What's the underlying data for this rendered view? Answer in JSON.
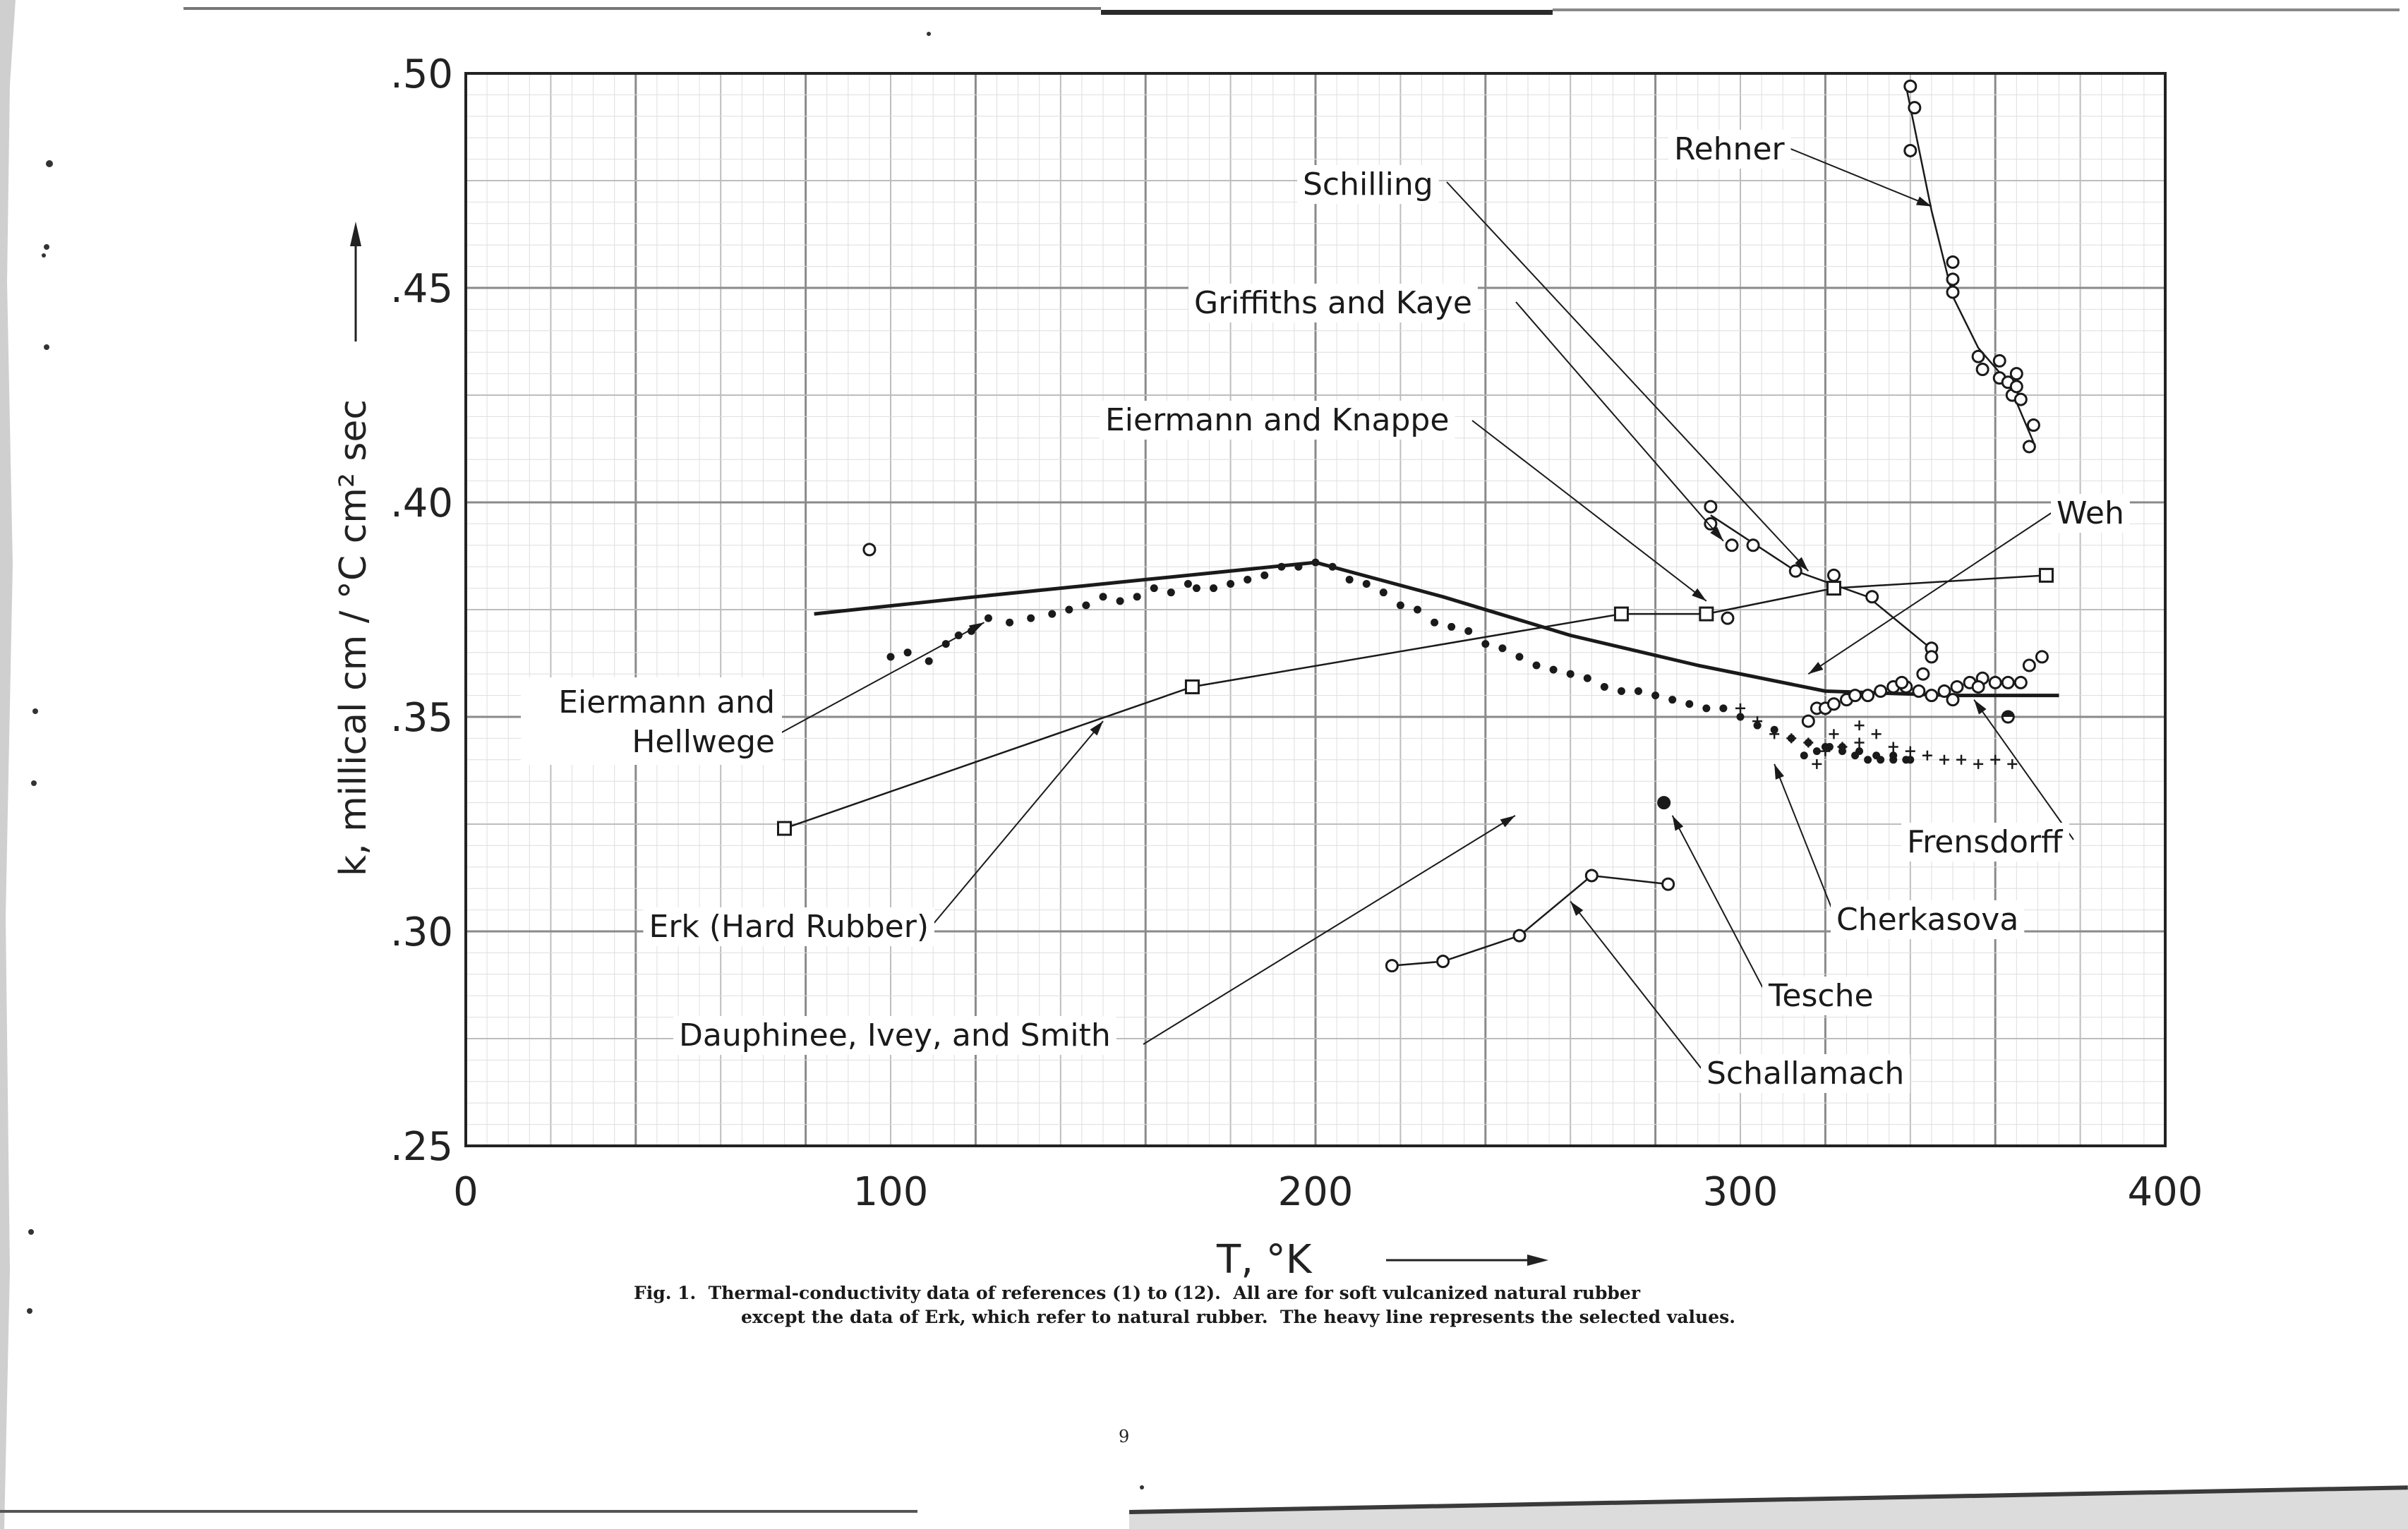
{
  "chart_data": {
    "type": "scatter",
    "xlim": [
      0,
      400
    ],
    "ylim": [
      0.25,
      0.5
    ],
    "x_ticks": [
      "0",
      "100",
      "200",
      "300",
      "400"
    ],
    "y_ticks": [
      ".25",
      ".30",
      ".35",
      ".40",
      ".45",
      ".50"
    ],
    "xlabel": "T, °K",
    "ylabel": "k, millical cm / °C cm² sec",
    "grid": true,
    "series": [
      {
        "name": "Rehner",
        "marker": "circle",
        "points": [
          [
            340,
            0.497
          ],
          [
            341,
            0.492
          ],
          [
            340,
            0.482
          ],
          [
            350,
            0.456
          ],
          [
            350,
            0.452
          ],
          [
            350,
            0.449
          ],
          [
            356,
            0.434
          ],
          [
            357,
            0.431
          ],
          [
            361,
            0.433
          ],
          [
            361,
            0.429
          ],
          [
            363,
            0.428
          ],
          [
            364,
            0.425
          ],
          [
            365,
            0.43
          ],
          [
            365,
            0.427
          ],
          [
            366,
            0.424
          ],
          [
            368,
            0.413
          ],
          [
            369,
            0.418
          ]
        ],
        "line": [
          [
            339,
            0.497
          ],
          [
            345,
            0.468
          ],
          [
            350,
            0.448
          ],
          [
            356,
            0.436
          ],
          [
            363,
            0.428
          ],
          [
            369,
            0.414
          ]
        ]
      },
      {
        "name": "Schilling",
        "marker": "circle",
        "points": [
          [
            95,
            0.389
          ]
        ]
      },
      {
        "name": "Griffiths and Kaye",
        "marker": "circle",
        "points": [
          [
            298,
            0.39
          ],
          [
            293,
            0.399
          ],
          [
            293,
            0.395
          ],
          [
            303,
            0.39
          ],
          [
            313,
            0.384
          ],
          [
            322,
            0.383
          ],
          [
            331,
            0.378
          ],
          [
            345,
            0.366
          ],
          [
            345,
            0.364
          ]
        ],
        "line": [
          [
            293,
            0.397
          ],
          [
            313,
            0.384
          ],
          [
            330,
            0.378
          ],
          [
            346,
            0.365
          ]
        ]
      },
      {
        "name": "Eiermann and Knappe",
        "marker": "circle",
        "points": [
          [
            297,
            0.373
          ]
        ]
      },
      {
        "name": "Eiermann and Hellwege",
        "marker": "dot",
        "points": [
          [
            100,
            0.364
          ],
          [
            104,
            0.365
          ],
          [
            109,
            0.363
          ],
          [
            113,
            0.367
          ],
          [
            116,
            0.369
          ],
          [
            119,
            0.37
          ],
          [
            123,
            0.373
          ],
          [
            128,
            0.372
          ],
          [
            133,
            0.373
          ],
          [
            138,
            0.374
          ],
          [
            142,
            0.375
          ],
          [
            146,
            0.376
          ],
          [
            150,
            0.378
          ],
          [
            154,
            0.377
          ],
          [
            158,
            0.378
          ],
          [
            162,
            0.38
          ],
          [
            166,
            0.379
          ],
          [
            170,
            0.381
          ],
          [
            172,
            0.38
          ],
          [
            176,
            0.38
          ],
          [
            180,
            0.381
          ],
          [
            184,
            0.382
          ],
          [
            188,
            0.383
          ],
          [
            192,
            0.385
          ],
          [
            196,
            0.385
          ],
          [
            200,
            0.386
          ],
          [
            204,
            0.385
          ],
          [
            208,
            0.382
          ],
          [
            212,
            0.381
          ],
          [
            216,
            0.379
          ],
          [
            220,
            0.376
          ],
          [
            224,
            0.375
          ],
          [
            228,
            0.372
          ],
          [
            232,
            0.371
          ],
          [
            236,
            0.37
          ],
          [
            240,
            0.367
          ],
          [
            244,
            0.366
          ],
          [
            248,
            0.364
          ],
          [
            252,
            0.362
          ],
          [
            256,
            0.361
          ],
          [
            260,
            0.36
          ],
          [
            264,
            0.359
          ],
          [
            268,
            0.357
          ],
          [
            272,
            0.356
          ],
          [
            276,
            0.356
          ],
          [
            280,
            0.355
          ],
          [
            284,
            0.354
          ],
          [
            288,
            0.353
          ],
          [
            292,
            0.352
          ],
          [
            296,
            0.352
          ],
          [
            300,
            0.35
          ],
          [
            304,
            0.348
          ],
          [
            308,
            0.347
          ],
          [
            312,
            0.345
          ],
          [
            316,
            0.344
          ],
          [
            320,
            0.343
          ],
          [
            324,
            0.343
          ],
          [
            328,
            0.342
          ],
          [
            332,
            0.341
          ],
          [
            336,
            0.341
          ],
          [
            340,
            0.34
          ]
        ]
      },
      {
        "name": "Erk (Hard Rubber)",
        "marker": "square",
        "points": [
          [
            75,
            0.324
          ],
          [
            171,
            0.357
          ],
          [
            272,
            0.374
          ],
          [
            292,
            0.374
          ],
          [
            322,
            0.38
          ],
          [
            372,
            0.383
          ]
        ],
        "line": [
          [
            75,
            0.324
          ],
          [
            171,
            0.357
          ],
          [
            272,
            0.374
          ],
          [
            292,
            0.374
          ],
          [
            322,
            0.38
          ],
          [
            372,
            0.383
          ]
        ]
      },
      {
        "name": "Dauphinee, Ivey, and Smith",
        "marker": "cross",
        "points": [
          [
            300,
            0.352
          ],
          [
            304,
            0.349
          ],
          [
            308,
            0.346
          ],
          [
            312,
            0.345
          ],
          [
            316,
            0.344
          ],
          [
            320,
            0.342
          ],
          [
            324,
            0.343
          ],
          [
            328,
            0.344
          ],
          [
            332,
            0.346
          ],
          [
            336,
            0.343
          ],
          [
            340,
            0.342
          ],
          [
            344,
            0.341
          ],
          [
            348,
            0.34
          ],
          [
            352,
            0.34
          ],
          [
            356,
            0.339
          ],
          [
            360,
            0.34
          ],
          [
            364,
            0.339
          ],
          [
            318,
            0.339
          ],
          [
            322,
            0.346
          ],
          [
            328,
            0.348
          ]
        ]
      },
      {
        "name": "Weh",
        "marker": "circle",
        "points": [
          [
            316,
            0.349
          ],
          [
            318,
            0.352
          ],
          [
            320,
            0.352
          ],
          [
            322,
            0.353
          ],
          [
            325,
            0.354
          ],
          [
            327,
            0.355
          ],
          [
            330,
            0.355
          ],
          [
            333,
            0.356
          ],
          [
            336,
            0.357
          ],
          [
            339,
            0.357
          ],
          [
            342,
            0.356
          ],
          [
            345,
            0.355
          ],
          [
            348,
            0.356
          ],
          [
            351,
            0.357
          ],
          [
            354,
            0.358
          ],
          [
            357,
            0.359
          ],
          [
            360,
            0.358
          ],
          [
            363,
            0.358
          ],
          [
            366,
            0.358
          ],
          [
            368,
            0.362
          ],
          [
            371,
            0.364
          ],
          [
            343,
            0.36
          ],
          [
            338,
            0.358
          ],
          [
            350,
            0.354
          ],
          [
            356,
            0.357
          ]
        ]
      },
      {
        "name": "Frensdorff",
        "marker": "circle-half",
        "points": [
          [
            363,
            0.35
          ]
        ]
      },
      {
        "name": "Cherkasova",
        "marker": "dot",
        "points": [
          [
            315,
            0.341
          ],
          [
            318,
            0.342
          ],
          [
            321,
            0.343
          ],
          [
            324,
            0.342
          ],
          [
            327,
            0.341
          ],
          [
            330,
            0.34
          ],
          [
            333,
            0.34
          ],
          [
            336,
            0.34
          ],
          [
            339,
            0.34
          ]
        ]
      },
      {
        "name": "Tesche",
        "marker": "circle-filled",
        "points": [
          [
            282,
            0.33
          ]
        ]
      },
      {
        "name": "Schallamach",
        "marker": "circle",
        "points": [
          [
            218,
            0.292
          ],
          [
            230,
            0.293
          ],
          [
            248,
            0.299
          ],
          [
            265,
            0.313
          ],
          [
            283,
            0.311
          ]
        ],
        "line": [
          [
            218,
            0.292
          ],
          [
            230,
            0.293
          ],
          [
            248,
            0.299
          ],
          [
            265,
            0.313
          ],
          [
            283,
            0.311
          ]
        ]
      },
      {
        "name": "Selected values (heavy line)",
        "marker": "none",
        "points": [],
        "line": [
          [
            82,
            0.374
          ],
          [
            120,
            0.378
          ],
          [
            160,
            0.382
          ],
          [
            200,
            0.386
          ],
          [
            230,
            0.378
          ],
          [
            260,
            0.369
          ],
          [
            290,
            0.362
          ],
          [
            320,
            0.356
          ],
          [
            350,
            0.355
          ],
          [
            375,
            0.355
          ]
        ]
      }
    ],
    "point_labels": [
      {
        "text": "Rehner",
        "target": [
          345,
          0.469
        ]
      },
      {
        "text": "Schilling",
        "target": [
          316,
          0.384
        ]
      },
      {
        "text": "Griffiths and Kaye",
        "target": [
          296,
          0.391
        ]
      },
      {
        "text": "Eiermann and Knappe",
        "target": [
          292,
          0.377
        ]
      },
      {
        "text": "Eiermann and Hellwege",
        "target": [
          122,
          0.372
        ]
      },
      {
        "text": "Erk (Hard Rubber)",
        "target": [
          150,
          0.349
        ]
      },
      {
        "text": "Dauphinee, Ivey, and Smith",
        "target": [
          247,
          0.327
        ]
      },
      {
        "text": "Weh",
        "target": [
          316,
          0.36
        ]
      },
      {
        "text": "Frensdorff",
        "target": [
          355,
          0.354
        ]
      },
      {
        "text": "Cherkasova",
        "target": [
          308,
          0.339
        ]
      },
      {
        "text": "Tesche",
        "target": [
          284,
          0.327
        ]
      },
      {
        "text": "Schallamach",
        "target": [
          260,
          0.307
        ]
      }
    ]
  },
  "caption": {
    "line1": "Fig. 1.  Thermal-conductivity data of references (1) to (12).  All are for soft vulcanized natural rubber",
    "line2": "except the data of Erk, which refer to natural rubber.  The heavy line represents the selected values."
  },
  "page_number": "9"
}
